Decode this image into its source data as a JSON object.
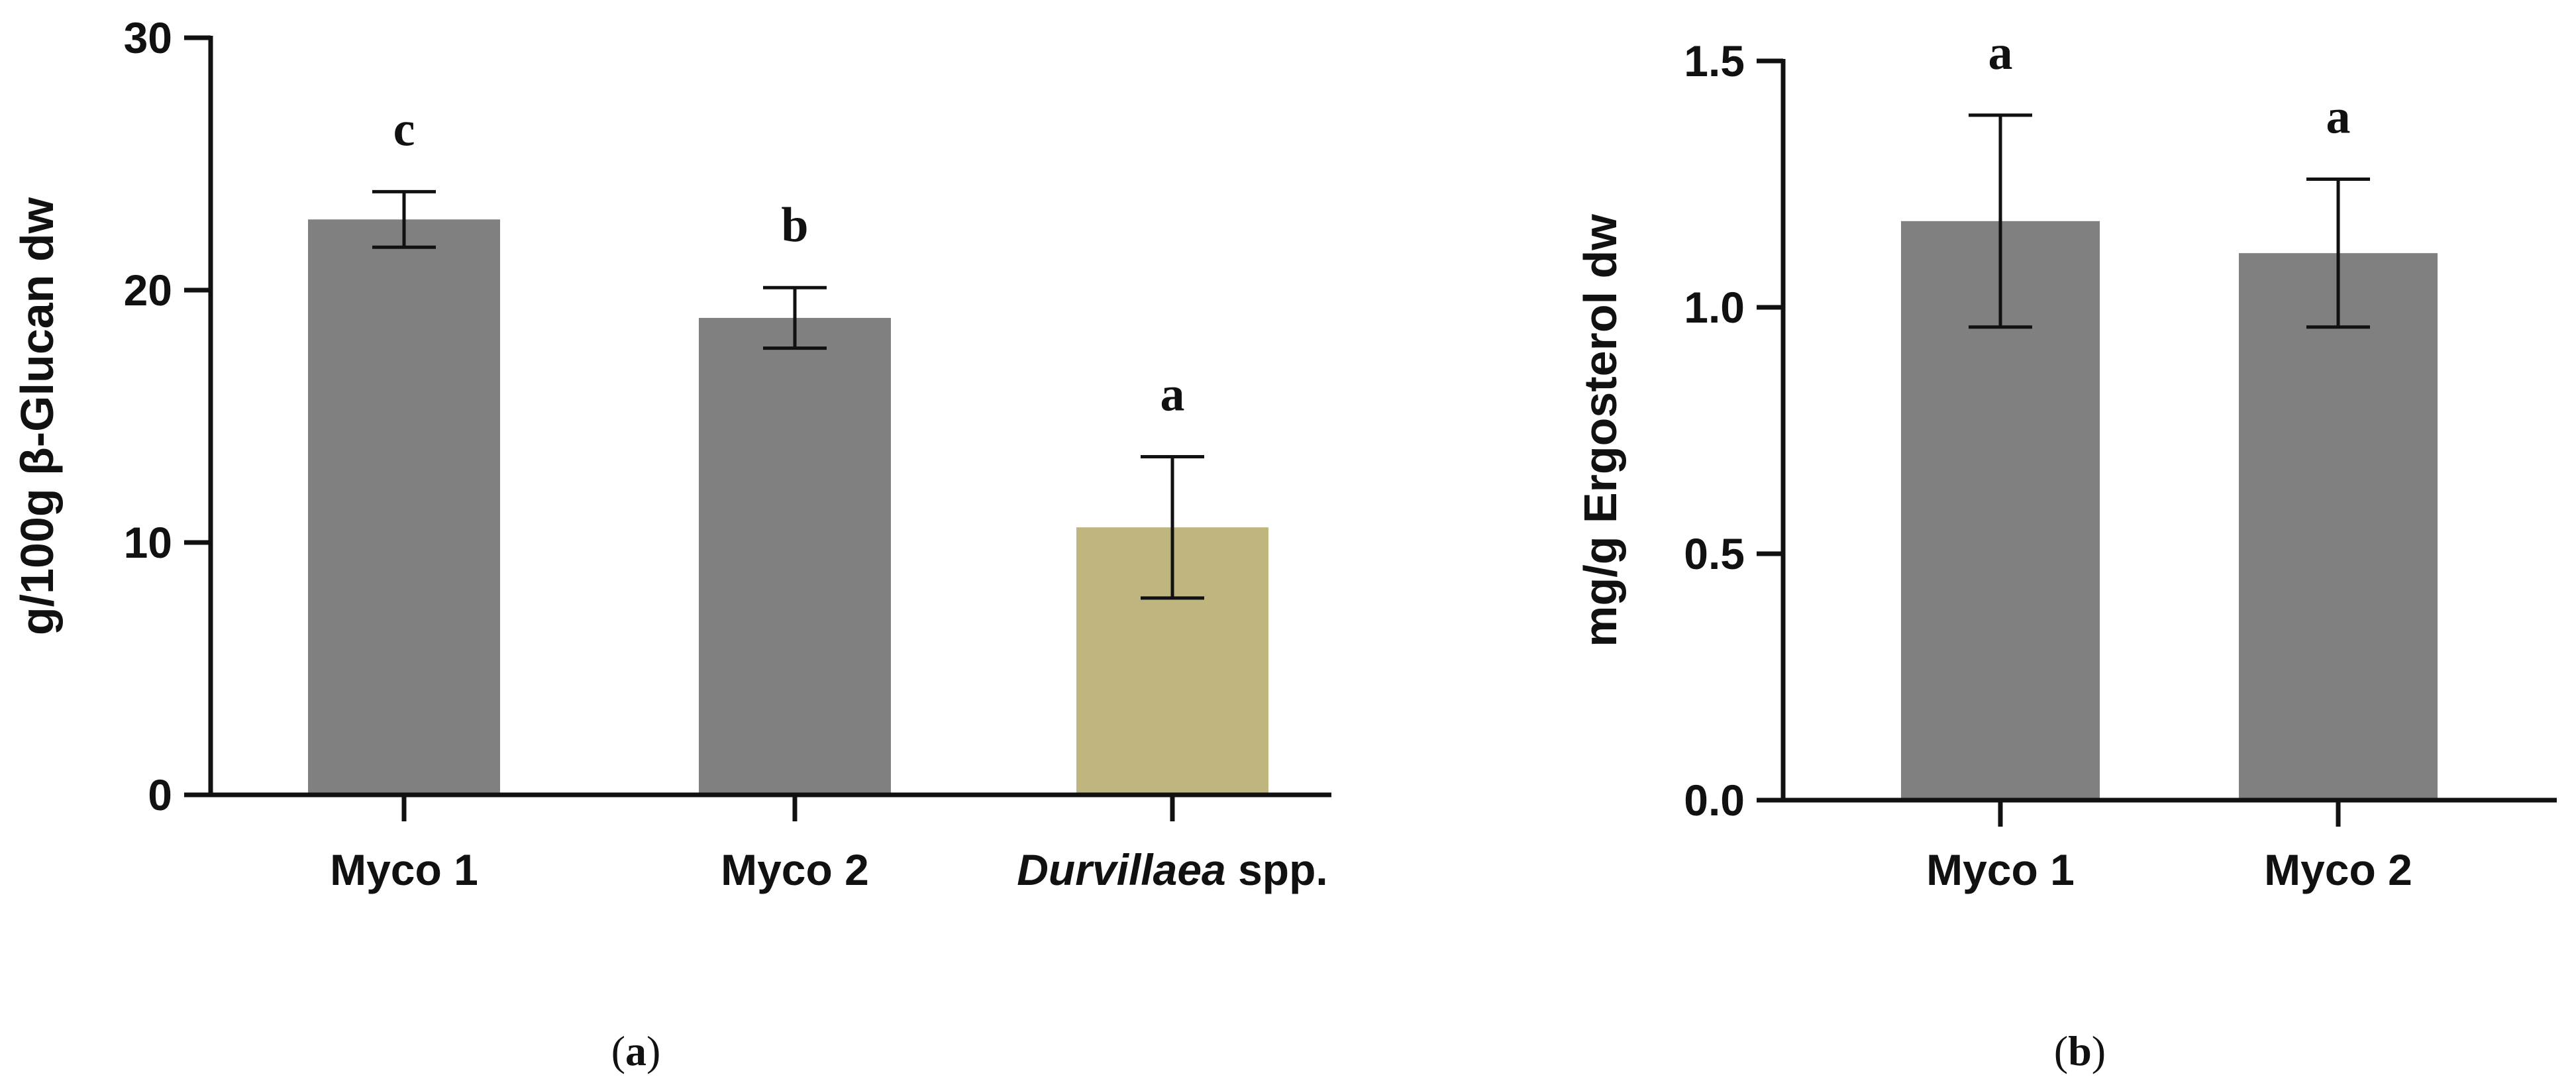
{
  "chart_data": [
    {
      "id": "a",
      "type": "bar",
      "title": "",
      "xlabel": "",
      "ylabel": "g/100g β-Glucan dw",
      "ylim": [
        0,
        30
      ],
      "yticks": [
        0,
        10,
        20,
        30
      ],
      "yticklabels": [
        "0",
        "10",
        "20",
        "30"
      ],
      "grid": false,
      "panel_label": {
        "open": "(",
        "letter": "a",
        "close": ")"
      },
      "categories": [
        {
          "label": "Myco 1",
          "italic_part": "",
          "plain_part": "Myco 1"
        },
        {
          "label": "Myco 2",
          "italic_part": "",
          "plain_part": "Myco 2"
        },
        {
          "label": "Durvillaea spp.",
          "italic_part": "Durvillaea",
          "plain_part": " spp."
        }
      ],
      "values": [
        22.8,
        18.9,
        10.6
      ],
      "errors": [
        1.1,
        1.2,
        2.8
      ],
      "significance": [
        "c",
        "b",
        "a"
      ],
      "colors": [
        "#808080",
        "#808080",
        "#bfb67f"
      ]
    },
    {
      "id": "b",
      "type": "bar",
      "title": "",
      "xlabel": "",
      "ylabel": "mg/g Ergosterol dw",
      "ylim": [
        0,
        1.5
      ],
      "yticks": [
        0,
        0.5,
        1.0,
        1.5
      ],
      "yticklabels": [
        "0.0",
        "0.5",
        "1.0",
        "1.5"
      ],
      "grid": false,
      "panel_label": {
        "open": "(",
        "letter": "b",
        "close": ")"
      },
      "categories": [
        {
          "label": "Myco 1",
          "italic_part": "",
          "plain_part": "Myco 1"
        },
        {
          "label": "Myco 2",
          "italic_part": "",
          "plain_part": "Myco 2"
        }
      ],
      "values": [
        1.175,
        1.11
      ],
      "errors": [
        0.215,
        0.15
      ],
      "significance": [
        "a",
        "a"
      ],
      "colors": [
        "#808080",
        "#808080"
      ]
    }
  ]
}
